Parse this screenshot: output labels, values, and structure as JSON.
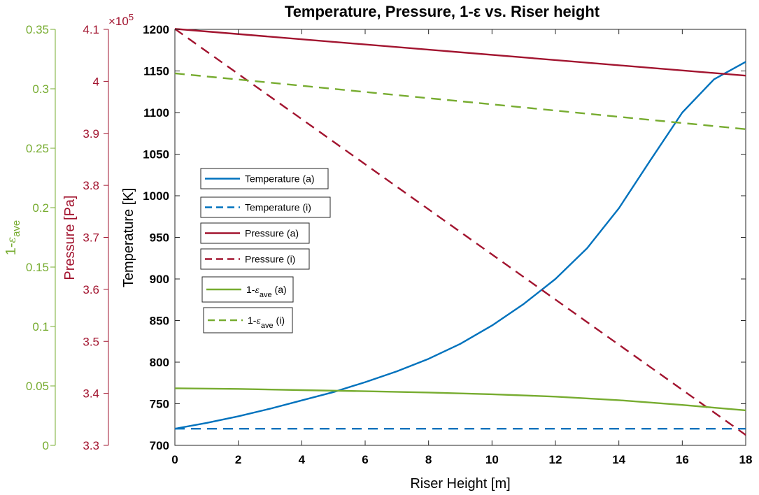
{
  "chart_data": {
    "type": "line",
    "title": "Temperature, Pressure, 1-ε vs. Riser height",
    "xlabel": "Riser Height [m]",
    "xlim": [
      0,
      18
    ],
    "xticks": [
      0,
      2,
      4,
      6,
      8,
      10,
      12,
      14,
      16,
      18
    ],
    "grid": false,
    "legend_placement": "center-left",
    "axes": {
      "temperature": {
        "label": "Temperature [K]",
        "ylim": [
          700,
          1200
        ],
        "ticks": [
          700,
          750,
          800,
          850,
          900,
          950,
          1000,
          1050,
          1100,
          1150,
          1200
        ],
        "color": "#000000"
      },
      "pressure": {
        "label": "Pressure [Pa]",
        "ylim": [
          3.3,
          4.1
        ],
        "ticks": [
          "3.3",
          "3.4",
          "3.5",
          "3.6",
          "3.7",
          "3.8",
          "3.9",
          "4",
          "4.1"
        ],
        "exponent_label": "×10",
        "exponent_power": "5",
        "color": "#A2142F"
      },
      "voidage": {
        "label_main": "1-",
        "label_eps": "ε",
        "label_sub": "ave",
        "ylim": [
          0,
          0.35
        ],
        "ticks": [
          "0",
          "0.05",
          "0.1",
          "0.15",
          "0.2",
          "0.25",
          "0.3",
          "0.35"
        ],
        "color": "#77AC30"
      }
    },
    "series": [
      {
        "key": "temp_a",
        "name": "Temperature (a)",
        "axis": "temperature",
        "style": "solid",
        "color": "#0072BD",
        "x": [
          0,
          1,
          2,
          3,
          4,
          5,
          6,
          7,
          8,
          9,
          10,
          11,
          12,
          13,
          14,
          15,
          16,
          17,
          18
        ],
        "y": [
          720,
          727,
          735,
          744,
          754,
          764,
          776,
          789,
          804,
          822,
          844,
          870,
          900,
          937,
          985,
          1043,
          1100,
          1140,
          1161
        ]
      },
      {
        "key": "temp_i",
        "name": "Temperature (i)",
        "axis": "temperature",
        "style": "dashed",
        "color": "#0072BD",
        "x": [
          0,
          18
        ],
        "y": [
          720,
          720
        ]
      },
      {
        "key": "pres_a",
        "name": "Pressure (a)",
        "axis": "pressure",
        "style": "solid",
        "color": "#A2142F",
        "x": [
          0,
          18
        ],
        "y": [
          4.101,
          4.011
        ]
      },
      {
        "key": "pres_i",
        "name": "Pressure (i)",
        "axis": "pressure",
        "style": "dashed",
        "color": "#A2142F",
        "x": [
          0,
          18
        ],
        "y": [
          4.101,
          3.32
        ]
      },
      {
        "key": "eps_a",
        "name_main": "1-",
        "name_eps": "ε",
        "name_sub": "ave",
        "name_tail": " (a)",
        "axis": "voidage",
        "style": "solid",
        "color": "#77AC30",
        "x": [
          0,
          2,
          4,
          6,
          8,
          10,
          12,
          14,
          16,
          18
        ],
        "y": [
          0.048,
          0.0475,
          0.0465,
          0.0455,
          0.0445,
          0.043,
          0.041,
          0.038,
          0.034,
          0.0295
        ]
      },
      {
        "key": "eps_i",
        "name_main": "1-",
        "name_eps": "ε",
        "name_sub": "ave",
        "name_tail": " (i)",
        "axis": "voidage",
        "style": "dashed",
        "color": "#77AC30",
        "x": [
          0,
          18
        ],
        "y": [
          0.313,
          0.266
        ]
      }
    ]
  }
}
